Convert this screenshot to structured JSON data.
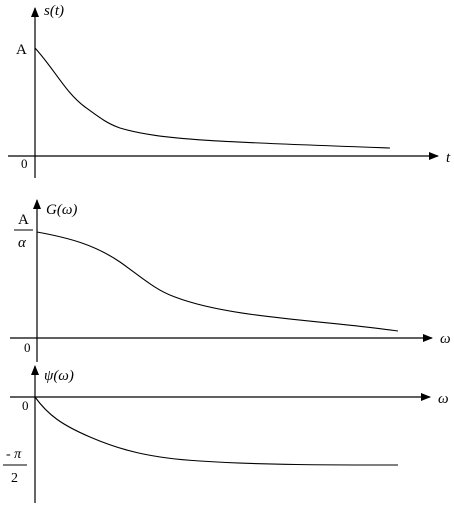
{
  "plots": [
    {
      "id": "signal",
      "y_label": "s(t)",
      "x_label": "t",
      "origin_label": "0",
      "start_label": "A"
    },
    {
      "id": "magnitude",
      "y_label": "G(ω)",
      "x_label": "ω",
      "origin_label": "0",
      "start_label_num": "A",
      "start_label_den": "α"
    },
    {
      "id": "phase",
      "y_label": "ψ(ω)",
      "x_label": "ω",
      "origin_label": "0",
      "end_label_num": "- π",
      "end_label_den": "2"
    }
  ]
}
